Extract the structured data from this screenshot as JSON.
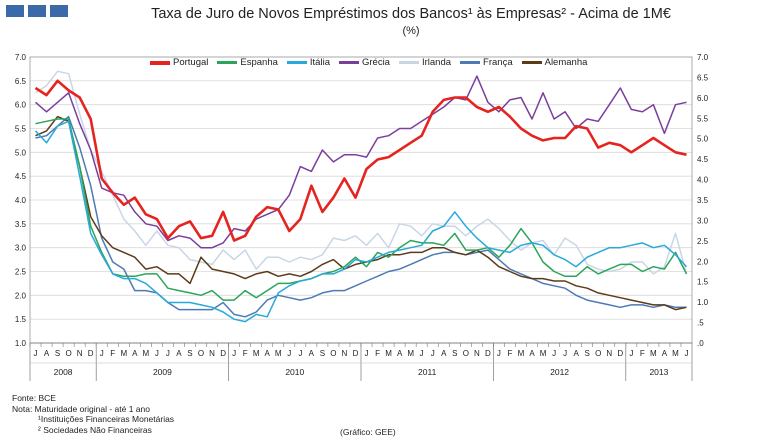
{
  "header": {
    "title": "Taxa de Juro de Novos Empréstimos dos Bancos¹ às Empresas² - Acima de 1M€",
    "subtitle": "(%)"
  },
  "footer": {
    "fonte": "Fonte: BCE",
    "nota": "Nota: Maturidade original - até 1 ano",
    "nota1": "¹Instituições Financeiras Monetárias",
    "nota2": "² Sociedades Não Financeiras",
    "grafico": "(Gráfico: GEE)"
  },
  "colors": {
    "portugal": "#e52420",
    "espanha": "#2aa55a",
    "italia": "#27a9d9",
    "grecia": "#7a3f9d",
    "irlanda": "#c9d6e6",
    "franca": "#4d7ab5",
    "alemanha": "#5c3b18"
  },
  "chart_data": {
    "type": "line",
    "title": "Taxa de Juro de Novos Empréstimos dos Bancos¹ às Empresas² - Acima de 1M€",
    "ylabel": "(%)",
    "ylim": [
      1.0,
      7.0
    ],
    "y_ticks": [
      "1.0",
      "1.5",
      "2.0",
      "2.5",
      "3.0",
      "3.5",
      "4.0",
      "4.5",
      "5.0",
      "5.5",
      "6.0",
      "6.5",
      "7.0"
    ],
    "y_ticks_right": [
      ".0",
      ".5",
      "1.0",
      "1.5",
      "2.0",
      "2.5",
      "3.0",
      "3.5",
      "4.0",
      "4.5",
      "5.0",
      "5.5",
      "6.0",
      "6.5",
      "7.0"
    ],
    "grid": true,
    "months": [
      "J",
      "A",
      "S",
      "O",
      "N",
      "D",
      "J",
      "F",
      "M",
      "A",
      "M",
      "J",
      "J",
      "A",
      "S",
      "O",
      "N",
      "D",
      "J",
      "F",
      "M",
      "A",
      "M",
      "J",
      "J",
      "A",
      "S",
      "O",
      "N",
      "D",
      "J",
      "F",
      "M",
      "A",
      "M",
      "J",
      "J",
      "A",
      "S",
      "O",
      "N",
      "D",
      "J",
      "F",
      "M",
      "A",
      "M",
      "J",
      "J",
      "A",
      "S",
      "O",
      "N",
      "D",
      "J",
      "F",
      "M",
      "A",
      "M",
      "J"
    ],
    "years": [
      {
        "label": "2008",
        "start": 0,
        "count": 6
      },
      {
        "label": "2009",
        "start": 6,
        "count": 12
      },
      {
        "label": "2010",
        "start": 18,
        "count": 12
      },
      {
        "label": "2011",
        "start": 30,
        "count": 12
      },
      {
        "label": "2012",
        "start": 42,
        "count": 12
      },
      {
        "label": "2013",
        "start": 54,
        "count": 6
      }
    ],
    "series": [
      {
        "key": "irlanda",
        "name": "Irlanda",
        "values": [
          6.25,
          6.4,
          6.7,
          6.65,
          5.8,
          5.05,
          4.6,
          4.1,
          3.6,
          3.35,
          3.05,
          3.35,
          3.05,
          3.0,
          2.75,
          2.7,
          2.65,
          2.95,
          2.75,
          2.95,
          2.55,
          2.8,
          2.8,
          2.7,
          2.8,
          2.75,
          2.85,
          3.2,
          3.15,
          3.25,
          3.05,
          3.3,
          3.0,
          3.5,
          3.45,
          3.25,
          3.5,
          3.45,
          3.45,
          3.25,
          3.45,
          3.6,
          3.4,
          3.15,
          2.95,
          3.1,
          3.15,
          2.85,
          3.2,
          3.05,
          2.65,
          2.55,
          2.5,
          2.55,
          2.7,
          2.7,
          2.45,
          2.6,
          3.3,
          2.45
        ]
      },
      {
        "key": "franca",
        "name": "França",
        "values": [
          5.3,
          5.35,
          5.55,
          5.75,
          5.1,
          4.3,
          3.2,
          2.7,
          2.55,
          2.1,
          2.1,
          2.05,
          1.85,
          1.7,
          1.7,
          1.7,
          1.7,
          1.85,
          1.6,
          1.55,
          1.65,
          1.9,
          2.0,
          1.95,
          1.9,
          1.95,
          2.05,
          2.1,
          2.1,
          2.2,
          2.3,
          2.4,
          2.5,
          2.55,
          2.65,
          2.75,
          2.85,
          2.9,
          2.9,
          2.85,
          2.9,
          2.95,
          2.75,
          2.55,
          2.45,
          2.35,
          2.25,
          2.2,
          2.15,
          2.0,
          1.9,
          1.85,
          1.8,
          1.75,
          1.8,
          1.8,
          1.75,
          1.8,
          1.75,
          1.75
        ]
      },
      {
        "key": "alemanha",
        "name": "Alemanha",
        "values": [
          5.35,
          5.45,
          5.75,
          5.65,
          4.7,
          3.65,
          3.25,
          3.0,
          2.9,
          2.8,
          2.55,
          2.6,
          2.45,
          2.45,
          2.25,
          2.8,
          2.55,
          2.5,
          2.45,
          2.35,
          2.45,
          2.5,
          2.4,
          2.45,
          2.4,
          2.5,
          2.65,
          2.75,
          2.55,
          2.65,
          2.7,
          2.75,
          2.85,
          2.85,
          2.9,
          2.9,
          3.0,
          3.0,
          2.9,
          2.85,
          2.95,
          2.8,
          2.6,
          2.5,
          2.4,
          2.35,
          2.35,
          2.3,
          2.3,
          2.2,
          2.15,
          2.05,
          2.0,
          1.95,
          1.9,
          1.85,
          1.8,
          1.8,
          1.7,
          1.75
        ]
      },
      {
        "key": "espanha",
        "name": "Espanha",
        "values": [
          5.6,
          5.65,
          5.7,
          5.7,
          4.7,
          3.45,
          2.9,
          2.45,
          2.4,
          2.4,
          2.45,
          2.45,
          2.15,
          2.1,
          2.05,
          2.0,
          2.1,
          1.9,
          1.9,
          2.1,
          1.95,
          2.1,
          2.25,
          2.25,
          2.3,
          2.35,
          2.45,
          2.5,
          2.6,
          2.8,
          2.6,
          2.9,
          2.8,
          3.0,
          3.15,
          3.1,
          3.1,
          3.05,
          3.3,
          2.95,
          2.95,
          3.0,
          2.8,
          3.05,
          3.4,
          3.1,
          2.7,
          2.5,
          2.4,
          2.4,
          2.6,
          2.45,
          2.55,
          2.65,
          2.65,
          2.5,
          2.6,
          2.55,
          2.9,
          2.45
        ]
      },
      {
        "key": "italia",
        "name": "Itália",
        "values": [
          5.45,
          5.2,
          5.55,
          5.65,
          4.5,
          3.3,
          2.85,
          2.45,
          2.35,
          2.35,
          2.25,
          2.05,
          1.85,
          1.85,
          1.85,
          1.8,
          1.75,
          1.65,
          1.5,
          1.45,
          1.6,
          1.55,
          2.05,
          2.2,
          2.3,
          2.35,
          2.45,
          2.45,
          2.55,
          2.75,
          2.7,
          2.8,
          2.9,
          2.95,
          3.0,
          3.05,
          3.35,
          3.45,
          3.75,
          3.45,
          3.2,
          3.0,
          2.95,
          2.9,
          3.05,
          3.1,
          3.05,
          2.85,
          2.75,
          2.6,
          2.8,
          2.9,
          3.0,
          3.0,
          3.05,
          3.1,
          3.0,
          3.05,
          2.85,
          2.6
        ]
      },
      {
        "key": "grecia",
        "name": "Grécia",
        "values": [
          6.05,
          5.85,
          6.05,
          6.25,
          5.6,
          5.05,
          4.25,
          4.15,
          4.1,
          3.75,
          3.5,
          3.45,
          3.15,
          3.25,
          3.2,
          3.0,
          3.0,
          3.1,
          3.4,
          3.35,
          3.6,
          3.7,
          3.8,
          4.1,
          4.7,
          4.6,
          5.05,
          4.8,
          4.95,
          4.95,
          4.9,
          5.3,
          5.35,
          5.5,
          5.5,
          5.65,
          5.8,
          5.95,
          6.15,
          6.1,
          6.6,
          6.05,
          5.85,
          6.1,
          6.15,
          5.7,
          6.25,
          5.7,
          5.85,
          5.5,
          5.7,
          5.65,
          6.0,
          6.35,
          5.9,
          5.85,
          6.0,
          5.4,
          6.0,
          6.05
        ]
      },
      {
        "key": "portugal",
        "name": "Portugal",
        "values": [
          6.35,
          6.2,
          6.5,
          6.3,
          6.15,
          5.7,
          4.45,
          4.15,
          3.9,
          4.05,
          3.7,
          3.6,
          3.2,
          3.45,
          3.55,
          3.2,
          3.25,
          3.75,
          3.15,
          3.25,
          3.65,
          3.85,
          3.8,
          3.35,
          3.6,
          4.3,
          3.75,
          4.05,
          4.45,
          4.05,
          4.65,
          4.85,
          4.9,
          5.05,
          5.2,
          5.35,
          5.85,
          6.1,
          6.15,
          6.15,
          5.95,
          5.85,
          5.95,
          5.75,
          5.5,
          5.35,
          5.25,
          5.3,
          5.3,
          5.55,
          5.5,
          5.1,
          5.2,
          5.15,
          5.0,
          5.15,
          5.3,
          5.15,
          5.0,
          4.95
        ]
      }
    ],
    "legend_order": [
      "portugal",
      "espanha",
      "italia",
      "grecia",
      "irlanda",
      "franca",
      "alemanha"
    ]
  }
}
